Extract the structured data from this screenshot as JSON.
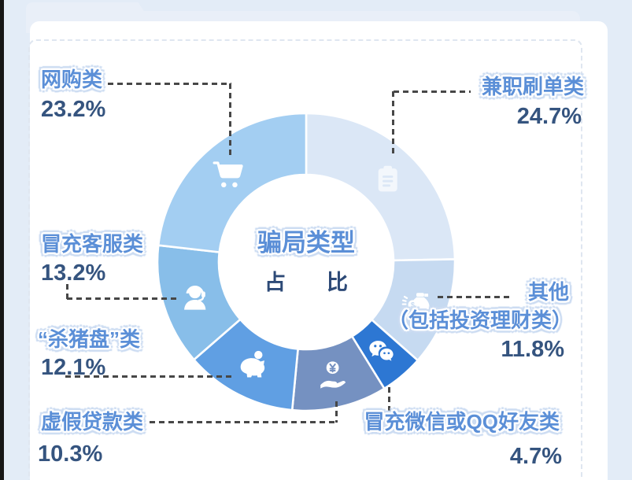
{
  "palette": {
    "background": "#e3ecf7",
    "card": "#ffffff",
    "folder_tab": "#e9eff8",
    "bubble_text": "#5b8fd7",
    "percent_text": "#35547f",
    "center_sub_text": "#2d4a77",
    "leader_line": "#474747",
    "segment_divider": "#ffffff"
  },
  "center": {
    "line1": "骗局类型",
    "line2": "占比"
  },
  "chart_data": {
    "type": "pie",
    "subtype": "donut",
    "title": "骗局类型占比",
    "unit": "%",
    "start_angle_deg": 0,
    "direction": "clockwise",
    "segments": [
      {
        "label": "兼职刷单类",
        "value": 24.7,
        "color": "#dbe7f6",
        "icon": "clipboard-icon"
      },
      {
        "label": "其他（包括投资理财类）",
        "value": 11.8,
        "color": "#c6daf1",
        "icon": "money-bag-icon"
      },
      {
        "label": "冒充微信或QQ好友类",
        "value": 4.7,
        "color": "#2d77d3",
        "icon": "wechat-icon"
      },
      {
        "label": "虚假贷款类",
        "value": 10.3,
        "color": "#7591c1",
        "icon": "hand-coin-icon"
      },
      {
        "label": "“杀猪盘”类",
        "value": 12.1,
        "color": "#609fe3",
        "icon": "piggy-bank-icon"
      },
      {
        "label": "冒充客服类",
        "value": 13.2,
        "color": "#88bee9",
        "icon": "headset-icon"
      },
      {
        "label": "网购类",
        "value": 23.2,
        "color": "#a3cef2",
        "icon": "cart-icon"
      }
    ]
  },
  "callouts": {
    "wanggou": {
      "name": "网购类",
      "pct": "23.2%"
    },
    "jianzhi": {
      "name": "兼职刷单类",
      "pct": "24.7%"
    },
    "kefu": {
      "name": "冒充客服类",
      "pct": "13.2%"
    },
    "shazhupan": {
      "name": "“杀猪盘”类",
      "pct": "12.1%"
    },
    "xujia": {
      "name": "虚假贷款类",
      "pct": "10.3%"
    },
    "qita": {
      "name": "其他",
      "paren": "（包括投资理财类）",
      "pct": "11.8%"
    },
    "weixin": {
      "name": "冒充微信或QQ好友类",
      "pct": "4.7%"
    }
  }
}
